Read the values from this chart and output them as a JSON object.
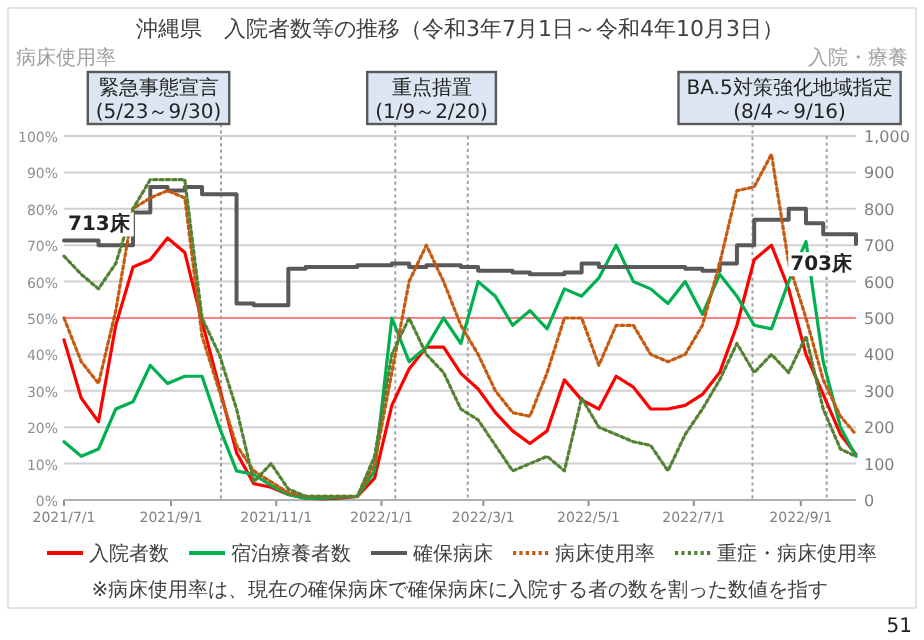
{
  "chart_data": {
    "type": "line",
    "title": "沖縄県　入院者数等の推移（令和3年7月1日～令和4年10月3日）",
    "ylabel": "病床使用率",
    "y2label": "入院・療養",
    "x": [
      "2021-07-01",
      "2021-07-11",
      "2021-07-21",
      "2021-07-31",
      "2021-08-10",
      "2021-08-20",
      "2021-08-30",
      "2021-09-09",
      "2021-09-19",
      "2021-09-29",
      "2021-10-09",
      "2021-10-19",
      "2021-10-29",
      "2021-11-08",
      "2021-11-18",
      "2021-11-28",
      "2021-12-08",
      "2021-12-18",
      "2021-12-28",
      "2022-01-07",
      "2022-01-17",
      "2022-01-27",
      "2022-02-06",
      "2022-02-16",
      "2022-02-26",
      "2022-03-08",
      "2022-03-18",
      "2022-03-28",
      "2022-04-07",
      "2022-04-17",
      "2022-04-27",
      "2022-05-07",
      "2022-05-17",
      "2022-05-27",
      "2022-06-06",
      "2022-06-16",
      "2022-06-26",
      "2022-07-06",
      "2022-07-16",
      "2022-07-26",
      "2022-08-05",
      "2022-08-15",
      "2022-08-25",
      "2022-09-04",
      "2022-09-14",
      "2022-09-24",
      "2022-10-03"
    ],
    "xlim": [
      "2021-07-01",
      "2022-10-03"
    ],
    "xticks": [
      {
        "value": "2021-07-01",
        "label": "2021/7/1"
      },
      {
        "value": "2021-09-01",
        "label": "2021/9/1"
      },
      {
        "value": "2021-11-01",
        "label": "2021/11/1"
      },
      {
        "value": "2022-01-01",
        "label": "2022/1/1"
      },
      {
        "value": "2022-03-01",
        "label": "2022/3/1"
      },
      {
        "value": "2022-05-01",
        "label": "2022/5/1"
      },
      {
        "value": "2022-07-01",
        "label": "2022/7/1"
      },
      {
        "value": "2022-09-01",
        "label": "2022/9/1"
      }
    ],
    "ylim": [
      0,
      100
    ],
    "yticks": [
      {
        "value": 0,
        "label": "0%"
      },
      {
        "value": 10,
        "label": "10%"
      },
      {
        "value": 20,
        "label": "20%"
      },
      {
        "value": 30,
        "label": "30%"
      },
      {
        "value": 40,
        "label": "40%"
      },
      {
        "value": 50,
        "label": "50%"
      },
      {
        "value": 60,
        "label": "60%"
      },
      {
        "value": 70,
        "label": "70%"
      },
      {
        "value": 80,
        "label": "80%"
      },
      {
        "value": 90,
        "label": "90%"
      },
      {
        "value": 100,
        "label": "100%"
      }
    ],
    "y2lim": [
      0,
      1000
    ],
    "y2ticks": [
      0,
      100,
      200,
      300,
      400,
      500,
      600,
      700,
      800,
      900,
      {
        "value": 1000,
        "label": "1,000"
      }
    ],
    "series": [
      {
        "name": "入院者数",
        "color": "#ff0000",
        "axis": "y2",
        "line_style": "solid",
        "values": [
          440,
          280,
          215,
          480,
          640,
          660,
          720,
          680,
          490,
          310,
          130,
          45,
          35,
          15,
          5,
          3,
          5,
          10,
          60,
          260,
          360,
          420,
          420,
          348,
          305,
          240,
          190,
          155,
          190,
          330,
          275,
          250,
          340,
          310,
          250,
          250,
          260,
          290,
          350,
          480,
          660,
          700,
          580,
          400,
          290,
          180,
          125
        ]
      },
      {
        "name": "宿泊療養者数",
        "color": "#00b050",
        "axis": "y2",
        "line_style": "solid",
        "values": [
          160,
          120,
          140,
          250,
          270,
          370,
          320,
          340,
          340,
          200,
          80,
          70,
          40,
          15,
          5,
          5,
          8,
          10,
          80,
          500,
          380,
          420,
          500,
          430,
          600,
          560,
          480,
          520,
          470,
          580,
          560,
          610,
          700,
          600,
          580,
          540,
          600,
          510,
          620,
          560,
          480,
          470,
          600,
          710,
          380,
          200,
          120
        ]
      },
      {
        "name": "確保病床",
        "color": "#595959",
        "axis": "y2",
        "type": "step",
        "line_style": "solid",
        "values": [
          713,
          713,
          700,
          700,
          790,
          860,
          850,
          860,
          840,
          840,
          540,
          535,
          535,
          635,
          640,
          640,
          640,
          645,
          645,
          650,
          640,
          645,
          645,
          640,
          630,
          630,
          625,
          620,
          620,
          625,
          650,
          640,
          640,
          640,
          640,
          640,
          635,
          630,
          650,
          700,
          770,
          770,
          800,
          760,
          730,
          730,
          703
        ]
      },
      {
        "name": "病床使用率",
        "color": "#c55a11",
        "line_style": "dotted",
        "values": [
          50,
          38,
          32,
          52,
          80,
          83,
          85,
          83,
          45,
          30,
          15,
          8,
          5,
          2,
          1,
          1,
          1,
          1,
          10,
          35,
          60,
          70,
          60,
          48,
          40,
          30,
          24,
          23,
          35,
          50,
          50,
          37,
          48,
          48,
          40,
          38,
          40,
          48,
          65,
          85,
          86,
          95,
          65,
          50,
          33,
          23,
          18
        ]
      },
      {
        "name": "重症・病床使用率",
        "color": "#548235",
        "line_style": "dotted",
        "values": [
          67,
          62,
          58,
          65,
          80,
          88,
          88,
          88,
          50,
          40,
          25,
          5,
          10,
          3,
          1,
          1,
          1,
          1,
          12,
          40,
          50,
          40,
          35,
          25,
          22,
          15,
          8,
          10,
          12,
          8,
          28,
          20,
          18,
          16,
          15,
          8,
          18,
          25,
          33,
          43,
          35,
          40,
          35,
          45,
          25,
          14,
          12
        ]
      }
    ],
    "ref_lines": [
      {
        "axis": "y",
        "value": 50,
        "color": "#ff8080",
        "line_style": "solid"
      },
      {
        "axis": "x",
        "value": "2021-09-30",
        "color": "#a0a0a0",
        "line_style": "dotted",
        "label": "緊急事態宣言\n(5/23～9/30)"
      },
      {
        "axis": "x",
        "value": "2022-01-09",
        "color": "#a0a0a0",
        "line_style": "dotted",
        "label": "重点措置\n(1/9～2/20)"
      },
      {
        "axis": "x",
        "value": "2022-02-20",
        "color": "#a0a0a0",
        "line_style": "dotted"
      },
      {
        "axis": "x",
        "value": "2022-08-04",
        "color": "#a0a0a0",
        "line_style": "dotted",
        "label": "BA.5対策強化地域指定\n(8/4～9/16)"
      },
      {
        "axis": "x",
        "value": "2022-09-16",
        "color": "#a0a0a0",
        "line_style": "dotted"
      }
    ],
    "annotations": [
      {
        "text": "713床",
        "x": "2021-07-01",
        "y": 71.3
      },
      {
        "text": "703床",
        "x": "2022-10-03",
        "y": 70.3
      },
      "※病床使用率は、現在の確保病床で確保病床に入院する者の数を割った数値を指す",
      "51"
    ],
    "grid": "y",
    "legend": "bottom"
  }
}
